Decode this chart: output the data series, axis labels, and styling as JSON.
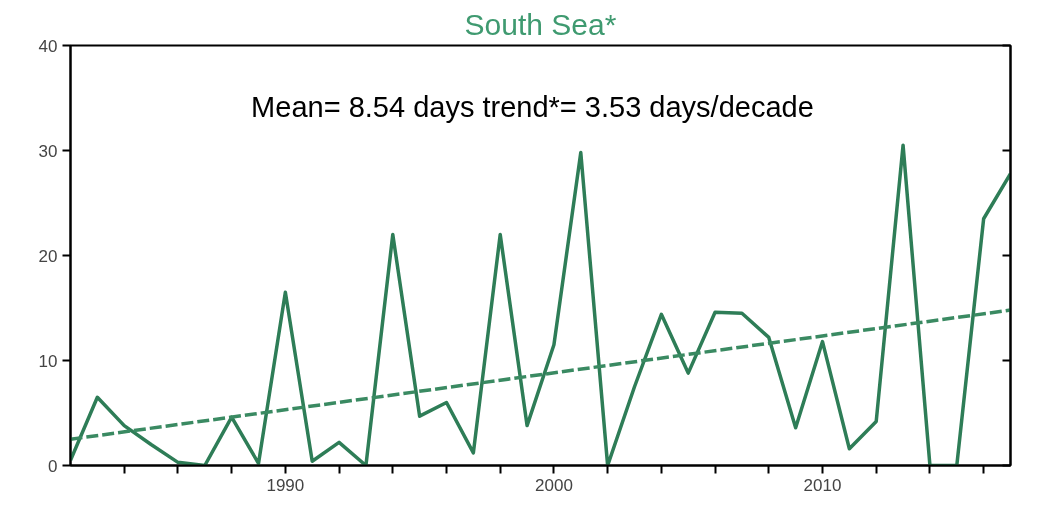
{
  "chart_data": {
    "type": "line",
    "title": "South Sea*",
    "annotations": [
      "Mean= 8.54 days   trend*= 3.53 days/decade"
    ],
    "xlim": [
      1982,
      2017
    ],
    "ylim": [
      0,
      40
    ],
    "xticks": [
      {
        "value": 1984,
        "label": null
      },
      {
        "value": 1986,
        "label": null
      },
      {
        "value": 1988,
        "label": null
      },
      1990,
      {
        "value": 1992,
        "label": null
      },
      {
        "value": 1994,
        "label": null
      },
      {
        "value": 1996,
        "label": null
      },
      {
        "value": 1998,
        "label": null
      },
      2000,
      {
        "value": 2002,
        "label": null
      },
      {
        "value": 2004,
        "label": null
      },
      {
        "value": 2006,
        "label": null
      },
      {
        "value": 2008,
        "label": null
      },
      2010,
      {
        "value": 2012,
        "label": null
      },
      {
        "value": 2014,
        "label": null
      },
      {
        "value": 2016,
        "label": null
      }
    ],
    "yticks": [
      0,
      10,
      20,
      30,
      40
    ],
    "grid": false,
    "x": [
      1982,
      1983,
      1984,
      1985,
      1986,
      1987,
      1988,
      1989,
      1990,
      1991,
      1992,
      1993,
      1994,
      1995,
      1996,
      1997,
      1998,
      1999,
      2000,
      2001,
      2002,
      2003,
      2004,
      2005,
      2006,
      2007,
      2008,
      2009,
      2010,
      2011,
      2012,
      2013,
      2014,
      2015,
      2016,
      2017
    ],
    "series": [
      {
        "color": "#2e7d57",
        "line_style": "solid",
        "values": [
          0.5,
          6.5,
          3.8,
          2,
          0.3,
          0,
          4.6,
          0.2,
          16.5,
          0.4,
          2.2,
          0,
          22,
          4.7,
          6,
          1.2,
          22,
          3.8,
          11.5,
          29.8,
          0,
          7.5,
          14.4,
          8.8,
          14.6,
          14.5,
          12.2,
          3.6,
          11.8,
          1.6,
          4.2,
          30.5,
          0,
          0,
          23.5,
          27.8
        ]
      },
      {
        "color": "#3a8a62",
        "line_style": "dashed",
        "x": [
          1982,
          2017
        ],
        "values": [
          2.5,
          14.8
        ]
      }
    ]
  }
}
